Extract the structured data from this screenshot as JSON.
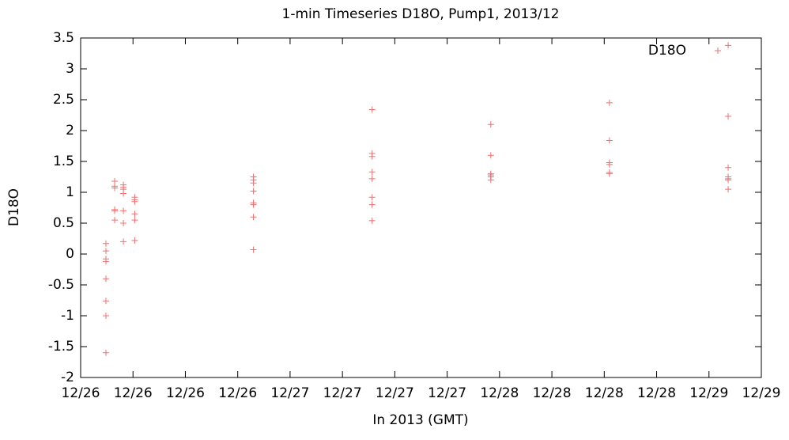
{
  "chart_data": {
    "type": "scatter",
    "title": "1-min Timeseries D18O, Pump1, 2013/12",
    "x_label": "In 2013 (GMT)",
    "y_label": "D18O",
    "series": [
      {
        "name": "D18O",
        "color": "#f07070",
        "x": [
          2.9,
          2.9,
          2.9,
          2.9,
          2.9,
          2.9,
          2.9,
          2.9,
          3.9,
          3.9,
          3.9,
          3.9,
          3.9,
          3.9,
          4.9,
          4.9,
          4.9,
          4.9,
          4.9,
          4.9,
          4.9,
          6.2,
          6.2,
          6.2,
          6.2,
          6.2,
          6.2,
          19.8,
          19.8,
          19.8,
          19.8,
          19.8,
          19.8,
          19.8,
          19.8,
          33.4,
          33.4,
          33.4,
          33.4,
          33.4,
          33.4,
          33.4,
          33.4,
          47.0,
          47.0,
          47.0,
          47.0,
          47.0,
          47.0,
          60.6,
          60.6,
          60.6,
          60.6,
          60.6,
          60.6,
          74.2,
          74.2,
          74.2,
          74.2,
          74.2,
          74.2,
          74.2
        ],
        "values": [
          0.17,
          0.05,
          -0.08,
          -0.12,
          -0.4,
          -0.76,
          -1.0,
          -1.6,
          1.18,
          1.1,
          1.07,
          0.72,
          0.7,
          0.55,
          1.12,
          1.08,
          1.05,
          0.98,
          0.7,
          0.5,
          0.2,
          0.92,
          0.88,
          0.85,
          0.65,
          0.55,
          0.22,
          1.25,
          1.2,
          1.15,
          1.02,
          0.83,
          0.8,
          0.6,
          0.07,
          2.34,
          1.63,
          1.58,
          1.33,
          1.22,
          0.92,
          0.8,
          0.54,
          2.1,
          1.6,
          1.3,
          1.28,
          1.25,
          1.2,
          2.45,
          1.84,
          1.48,
          1.45,
          1.32,
          1.3,
          3.38,
          2.23,
          1.4,
          1.25,
          1.22,
          1.2,
          1.05
        ]
      }
    ],
    "xlim": [
      0,
      78
    ],
    "ylim": [
      -2,
      3.5
    ],
    "xticks": [
      {
        "value": 0,
        "label": "12/26"
      },
      {
        "value": 6,
        "label": "12/26"
      },
      {
        "value": 12,
        "label": "12/26"
      },
      {
        "value": 18,
        "label": "12/26"
      },
      {
        "value": 24,
        "label": "12/27"
      },
      {
        "value": 30,
        "label": "12/27"
      },
      {
        "value": 36,
        "label": "12/27"
      },
      {
        "value": 42,
        "label": "12/27"
      },
      {
        "value": 48,
        "label": "12/28"
      },
      {
        "value": 54,
        "label": "12/28"
      },
      {
        "value": 60,
        "label": "12/28"
      },
      {
        "value": 66,
        "label": "12/28"
      },
      {
        "value": 72,
        "label": "12/29"
      },
      {
        "value": 78,
        "label": "12/29"
      }
    ],
    "yticks": [
      -2,
      -1.5,
      -1,
      -0.5,
      0,
      0.5,
      1,
      1.5,
      2,
      2.5,
      3,
      3.5
    ],
    "legend": "top-right"
  }
}
